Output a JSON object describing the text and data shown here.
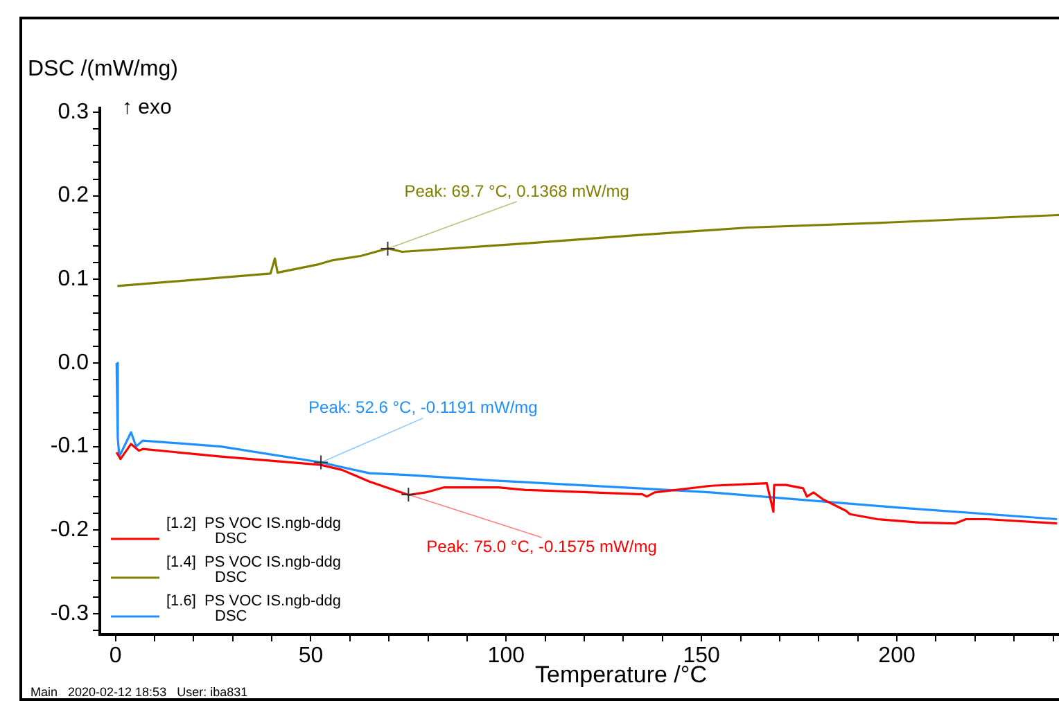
{
  "chart_data": {
    "type": "line",
    "xlabel": "Temperature /°C",
    "ylabel": "DSC /(mW/mg)",
    "xlim": [
      -4,
      241.5
    ],
    "ylim": [
      -0.325,
      0.305
    ],
    "xticks": [
      0,
      {
        "value": 10,
        "label": null
      },
      {
        "value": 20,
        "label": null
      },
      {
        "value": 30,
        "label": null
      },
      {
        "value": 40,
        "label": null
      },
      50,
      {
        "value": 60,
        "label": null
      },
      {
        "value": 70,
        "label": null
      },
      {
        "value": 80,
        "label": null
      },
      {
        "value": 90,
        "label": null
      },
      100,
      {
        "value": 110,
        "label": null
      },
      {
        "value": 120,
        "label": null
      },
      {
        "value": 130,
        "label": null
      },
      {
        "value": 140,
        "label": null
      },
      150,
      {
        "value": 160,
        "label": null
      },
      {
        "value": 170,
        "label": null
      },
      {
        "value": 180,
        "label": null
      },
      {
        "value": 190,
        "label": null
      },
      200,
      {
        "value": 210,
        "label": null
      },
      {
        "value": 220,
        "label": null
      },
      {
        "value": 230,
        "label": null
      },
      {
        "value": 240,
        "label": null
      }
    ],
    "yticks": [
      {
        "value": -0.32,
        "label": null
      },
      {
        "value": -0.3,
        "label": "-0.3"
      },
      {
        "value": -0.28,
        "label": null
      },
      {
        "value": -0.26,
        "label": null
      },
      {
        "value": -0.24,
        "label": null
      },
      {
        "value": -0.22,
        "label": null
      },
      {
        "value": -0.2,
        "label": "-0.2"
      },
      {
        "value": -0.18,
        "label": null
      },
      {
        "value": -0.16,
        "label": null
      },
      {
        "value": -0.14,
        "label": null
      },
      {
        "value": -0.12,
        "label": null
      },
      {
        "value": -0.1,
        "label": "-0.1"
      },
      {
        "value": -0.08,
        "label": null
      },
      {
        "value": -0.06,
        "label": null
      },
      {
        "value": -0.04,
        "label": null
      },
      {
        "value": -0.02,
        "label": null
      },
      {
        "value": 0,
        "label": "0.0"
      },
      {
        "value": 0.02,
        "label": null
      },
      {
        "value": 0.04,
        "label": null
      },
      {
        "value": 0.06,
        "label": null
      },
      {
        "value": 0.08,
        "label": null
      },
      {
        "value": 0.1,
        "label": "0.1"
      },
      {
        "value": 0.12,
        "label": null
      },
      {
        "value": 0.14,
        "label": null
      },
      {
        "value": 0.16,
        "label": null
      },
      {
        "value": 0.18,
        "label": null
      },
      {
        "value": 0.2,
        "label": "0.2"
      },
      {
        "value": 0.22,
        "label": null
      },
      {
        "value": 0.24,
        "label": null
      },
      {
        "value": 0.26,
        "label": null
      },
      {
        "value": 0.28,
        "label": null
      },
      {
        "value": 0.3,
        "label": "0.3"
      }
    ],
    "grid": false,
    "legend": "bottom left",
    "marker": "none",
    "line_style": "solid",
    "series": [
      {
        "name": "[1.2]  PS VOC IS.ngb-ddg DSC",
        "color": "#ff0000",
        "x": [
          0.3,
          1.3,
          4,
          6,
          7,
          27,
          52.6,
          58,
          65,
          75,
          79.4,
          84,
          98,
          105,
          133.7,
          134.8,
          136,
          138,
          152.5,
          166.7,
          168.4,
          168.6,
          171.6,
          176,
          177,
          178.7,
          181,
          187,
          188,
          195,
          205.7,
          215,
          217.7,
          223,
          241
        ],
        "values": [
          -0.107,
          -0.115,
          -0.097,
          -0.105,
          -0.103,
          -0.112,
          -0.122,
          -0.128,
          -0.142,
          -0.158,
          -0.155,
          -0.149,
          -0.149,
          -0.152,
          -0.157,
          -0.157,
          -0.16,
          -0.155,
          -0.147,
          -0.144,
          -0.178,
          -0.146,
          -0.146,
          -0.15,
          -0.16,
          -0.155,
          -0.163,
          -0.177,
          -0.181,
          -0.187,
          -0.191,
          -0.192,
          -0.187,
          -0.187,
          -0.192
        ]
      },
      {
        "name": "[1.4]  PS VOC IS.ngb-ddg DSC",
        "color": "#808000",
        "x": [
          0.5,
          39.7,
          40.8,
          41.5,
          52,
          55.7,
          62.8,
          69.7,
          73.4,
          105,
          133.7,
          162,
          197.5,
          241.5
        ],
        "values": [
          0.092,
          0.107,
          0.125,
          0.108,
          0.118,
          0.123,
          0.128,
          0.137,
          0.133,
          0.143,
          0.153,
          0.162,
          0.168,
          0.177
        ]
      },
      {
        "name": "[1.6]  PS VOC IS.ngb-ddg DSC",
        "color": "#1e90ff",
        "x": [
          0.3,
          0.6,
          1,
          4,
          5.3,
          7,
          27,
          52.6,
          65,
          74.5,
          98,
          133.7,
          152.5,
          200,
          241
        ],
        "values": [
          0,
          -0.09,
          -0.112,
          -0.083,
          -0.1,
          -0.093,
          -0.1,
          -0.119,
          -0.132,
          -0.134,
          -0.141,
          -0.15,
          -0.155,
          -0.173,
          -0.187
        ]
      }
    ],
    "annotations": [
      "↑ exo",
      "Main   2020-02-12 18:53   User: iba831",
      {
        "text": "Peak: 75.0 °C, -0.1575 mW/mg",
        "x": 75.0,
        "y": -0.1575
      },
      {
        "text": "Peak: 69.7 °C, 0.1368 mW/mg",
        "x": 69.7,
        "y": 0.1368
      },
      {
        "text": "Peak: 52.6 °C, -0.1191 mW/mg",
        "x": 52.6,
        "y": -0.1191
      }
    ]
  }
}
